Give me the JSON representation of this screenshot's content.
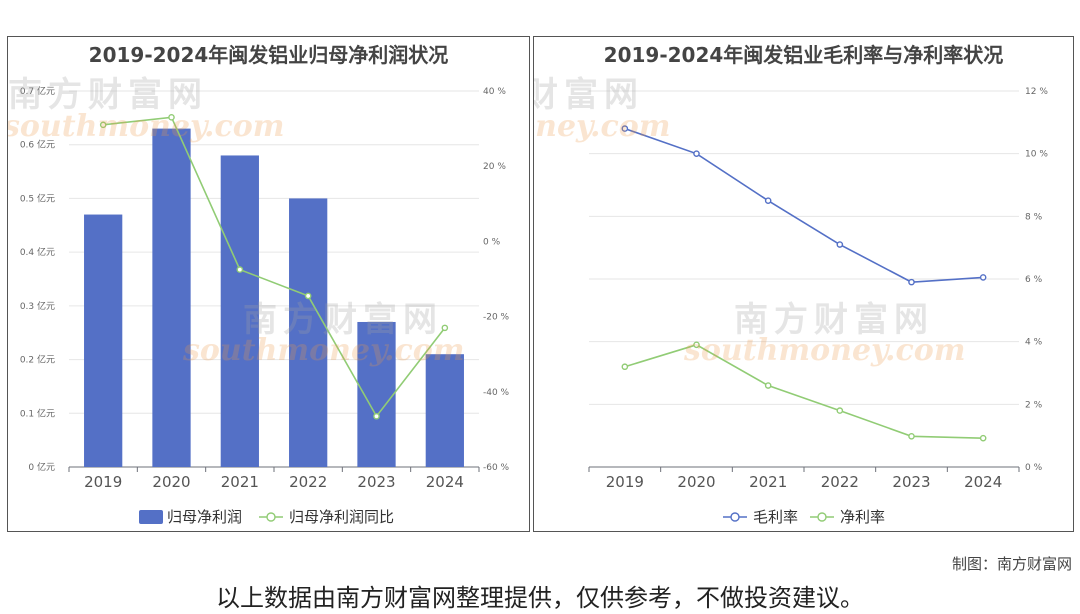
{
  "charts": {
    "left": {
      "title": "2019-2024年闽发铝业归母净利润状况"
    },
    "right": {
      "title": "2019-2024年闽发铝业毛利率与净利率状况"
    }
  },
  "chart_data": [
    {
      "type": "bar",
      "title": "2019-2024年闽发铝业归母净利润状况",
      "categories": [
        "2019",
        "2020",
        "2021",
        "2022",
        "2023",
        "2024"
      ],
      "series": [
        {
          "name": "归母净利润",
          "type": "bar",
          "axis": "left",
          "color": "#5470c6",
          "values": [
            0.47,
            0.63,
            0.58,
            0.5,
            0.27,
            0.21
          ]
        },
        {
          "name": "归母净利润同比",
          "type": "line",
          "axis": "right",
          "color": "#91cc75",
          "values": [
            31,
            33,
            -7.5,
            -14.5,
            -46.5,
            -23
          ]
        }
      ],
      "y_left": {
        "min": 0,
        "max": 0.7,
        "step": 0.1,
        "unit": "亿元",
        "ticks": [
          "0 亿元",
          "0.1 亿元",
          "0.2 亿元",
          "0.3 亿元",
          "0.4 亿元",
          "0.5 亿元",
          "0.6 亿元",
          "0.7 亿元"
        ]
      },
      "y_right": {
        "min": -60,
        "max": 40,
        "step": 20,
        "ticks": [
          "-60 %",
          "-40 %",
          "-20 %",
          "0 %",
          "20 %",
          "40 %"
        ]
      },
      "legend_position": "bottom",
      "grid": true
    },
    {
      "type": "line",
      "title": "2019-2024年闽发铝业毛利率与净利率状况",
      "categories": [
        "2019",
        "2020",
        "2021",
        "2022",
        "2023",
        "2024"
      ],
      "series": [
        {
          "name": "毛利率",
          "color": "#5470c6",
          "values": [
            10.8,
            10.0,
            8.5,
            7.1,
            5.9,
            6.05
          ]
        },
        {
          "name": "净利率",
          "color": "#91cc75",
          "values": [
            3.2,
            3.9,
            2.6,
            1.8,
            0.98,
            0.92
          ]
        }
      ],
      "y_right": {
        "min": 0,
        "max": 12,
        "step": 2,
        "ticks": [
          "0 %",
          "2 %",
          "4 %",
          "6 %",
          "8 %",
          "10 %",
          "12 %"
        ]
      },
      "legend_position": "bottom",
      "grid": true
    }
  ],
  "watermark": {
    "cn": "南方财富网",
    "en": "southmoney.com"
  },
  "footer": {
    "credit": "制图：南方财富网",
    "disclaimer": "以上数据由南方财富网整理提供，仅供参考，不做投资建议。"
  }
}
